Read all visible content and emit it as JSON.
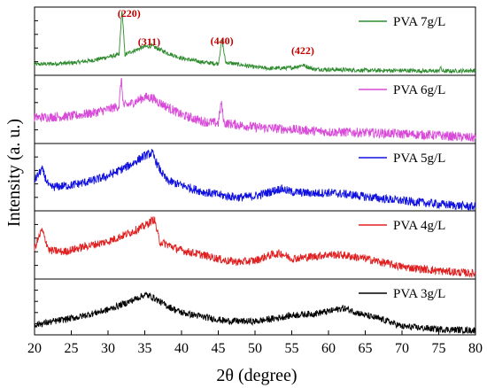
{
  "chart_data": {
    "type": "line",
    "xlabel": "2θ (degree)",
    "ylabel": "Intensity (a. u.)",
    "xlim": [
      20,
      80
    ],
    "x_ticks": [
      20,
      25,
      30,
      35,
      40,
      45,
      50,
      55,
      60,
      65,
      70,
      75,
      80
    ],
    "grid": false,
    "legend_position": "top-right of each panel",
    "panels": [
      {
        "name": "PVA 7g/L",
        "color": "#2e8b2e",
        "points": [
          [
            20,
            0.16
          ],
          [
            25,
            0.18
          ],
          [
            28,
            0.22
          ],
          [
            30,
            0.27
          ],
          [
            31.5,
            0.3
          ],
          [
            31.9,
            0.97
          ],
          [
            32.3,
            0.3
          ],
          [
            33,
            0.34
          ],
          [
            35,
            0.42
          ],
          [
            36,
            0.43
          ],
          [
            38,
            0.33
          ],
          [
            40,
            0.25
          ],
          [
            43,
            0.19
          ],
          [
            45,
            0.17
          ],
          [
            45.5,
            0.52
          ],
          [
            46,
            0.19
          ],
          [
            50,
            0.12
          ],
          [
            52,
            0.1
          ],
          [
            55,
            0.11
          ],
          [
            56.5,
            0.15
          ],
          [
            58,
            0.09
          ],
          [
            62,
            0.08
          ],
          [
            66,
            0.07
          ],
          [
            70,
            0.07
          ],
          [
            75,
            0.06
          ],
          [
            75.2,
            0.12
          ],
          [
            75.5,
            0.06
          ],
          [
            80,
            0.07
          ]
        ],
        "noise": 0.03,
        "annotations": [
          {
            "label": "(220)",
            "x": 31.9
          },
          {
            "label": "(311)",
            "x": 35.6
          },
          {
            "label": "(440)",
            "x": 45.5
          },
          {
            "label": "(422)",
            "x": 56.5
          }
        ]
      },
      {
        "name": "PVA 6g/L",
        "color": "#d84bd8",
        "points": [
          [
            20,
            0.38
          ],
          [
            25,
            0.4
          ],
          [
            28,
            0.45
          ],
          [
            30,
            0.5
          ],
          [
            31.5,
            0.55
          ],
          [
            31.8,
            0.95
          ],
          [
            32.1,
            0.55
          ],
          [
            33,
            0.58
          ],
          [
            35,
            0.68
          ],
          [
            36,
            0.67
          ],
          [
            37,
            0.6
          ],
          [
            40,
            0.42
          ],
          [
            43,
            0.32
          ],
          [
            45,
            0.3
          ],
          [
            45.4,
            0.6
          ],
          [
            45.8,
            0.3
          ],
          [
            50,
            0.24
          ],
          [
            53,
            0.22
          ],
          [
            56,
            0.2
          ],
          [
            60,
            0.17
          ],
          [
            65,
            0.16
          ],
          [
            70,
            0.14
          ],
          [
            75,
            0.12
          ],
          [
            80,
            0.08
          ]
        ],
        "noise": 0.07,
        "annotations": []
      },
      {
        "name": "PVA 5g/L",
        "color": "#1010e0",
        "points": [
          [
            20,
            0.45
          ],
          [
            21,
            0.62
          ],
          [
            22,
            0.35
          ],
          [
            25,
            0.38
          ],
          [
            28,
            0.45
          ],
          [
            30,
            0.52
          ],
          [
            33,
            0.68
          ],
          [
            35,
            0.82
          ],
          [
            36,
            0.86
          ],
          [
            37,
            0.62
          ],
          [
            38,
            0.45
          ],
          [
            40,
            0.38
          ],
          [
            43,
            0.28
          ],
          [
            46,
            0.22
          ],
          [
            48,
            0.2
          ],
          [
            50,
            0.22
          ],
          [
            52,
            0.28
          ],
          [
            53.5,
            0.33
          ],
          [
            55,
            0.28
          ],
          [
            58,
            0.26
          ],
          [
            60,
            0.27
          ],
          [
            63,
            0.24
          ],
          [
            65,
            0.21
          ],
          [
            70,
            0.15
          ],
          [
            75,
            0.1
          ],
          [
            80,
            0.06
          ]
        ],
        "noise": 0.065,
        "annotations": []
      },
      {
        "name": "PVA 4g/L",
        "color": "#e02020",
        "points": [
          [
            20,
            0.45
          ],
          [
            21,
            0.72
          ],
          [
            22,
            0.42
          ],
          [
            24,
            0.4
          ],
          [
            27,
            0.48
          ],
          [
            30,
            0.55
          ],
          [
            33,
            0.68
          ],
          [
            35,
            0.78
          ],
          [
            36.3,
            0.88
          ],
          [
            37,
            0.55
          ],
          [
            40,
            0.42
          ],
          [
            43,
            0.35
          ],
          [
            46,
            0.27
          ],
          [
            48,
            0.25
          ],
          [
            50,
            0.27
          ],
          [
            52,
            0.35
          ],
          [
            53.5,
            0.38
          ],
          [
            55,
            0.3
          ],
          [
            58,
            0.33
          ],
          [
            60,
            0.36
          ],
          [
            62,
            0.35
          ],
          [
            65,
            0.3
          ],
          [
            70,
            0.18
          ],
          [
            75,
            0.12
          ],
          [
            80,
            0.08
          ]
        ],
        "noise": 0.06,
        "annotations": []
      },
      {
        "name": "PVA 3g/L",
        "color": "#000000",
        "points": [
          [
            20,
            0.18
          ],
          [
            23,
            0.25
          ],
          [
            26,
            0.32
          ],
          [
            30,
            0.45
          ],
          [
            33,
            0.6
          ],
          [
            35,
            0.72
          ],
          [
            36,
            0.68
          ],
          [
            38,
            0.52
          ],
          [
            40,
            0.4
          ],
          [
            43,
            0.32
          ],
          [
            46,
            0.25
          ],
          [
            50,
            0.24
          ],
          [
            53,
            0.3
          ],
          [
            55,
            0.35
          ],
          [
            58,
            0.38
          ],
          [
            60,
            0.42
          ],
          [
            62,
            0.48
          ],
          [
            63,
            0.44
          ],
          [
            65,
            0.35
          ],
          [
            68,
            0.25
          ],
          [
            70,
            0.15
          ],
          [
            75,
            0.1
          ],
          [
            80,
            0.08
          ]
        ],
        "noise": 0.06,
        "annotations": []
      }
    ]
  }
}
